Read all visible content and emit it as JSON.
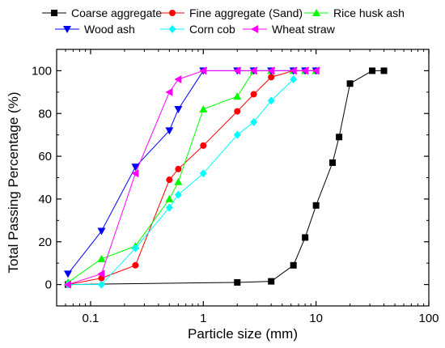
{
  "chart_data": {
    "type": "line",
    "xlabel": "Particle size (mm)",
    "ylabel": "Total Passing Percentage (%)",
    "x_scale": "log",
    "xlim": [
      0.05,
      100
    ],
    "ylim": [
      -10,
      110
    ],
    "x_ticks": [
      {
        "value": 0.1,
        "label": "0.1"
      },
      {
        "value": 1,
        "label": "1"
      },
      {
        "value": 10,
        "label": "10"
      },
      {
        "value": 100,
        "label": "100"
      }
    ],
    "y_ticks": [
      {
        "value": 0,
        "label": "0"
      },
      {
        "value": 20,
        "label": "20"
      },
      {
        "value": 40,
        "label": "40"
      },
      {
        "value": 60,
        "label": "60"
      },
      {
        "value": 80,
        "label": "80"
      },
      {
        "value": 100,
        "label": "100"
      }
    ],
    "grid": false,
    "legend_position": "top",
    "series": [
      {
        "name": "Coarse aggregate",
        "color": "#000000",
        "marker": "square",
        "x": [
          0.063,
          2,
          4,
          6.3,
          8,
          10,
          14,
          16,
          20,
          31.5,
          40
        ],
        "y": [
          0,
          1,
          1.5,
          9,
          22,
          37,
          57,
          69,
          94,
          100,
          100
        ]
      },
      {
        "name": "Fine aggregate (Sand)",
        "color": "#ff0000",
        "marker": "circle",
        "x": [
          0.063,
          0.125,
          0.25,
          0.5,
          0.6,
          1,
          2,
          2.8,
          4,
          6.3,
          8,
          10
        ],
        "y": [
          0,
          3,
          9,
          49,
          54,
          65,
          81,
          89,
          97,
          100,
          100,
          100
        ]
      },
      {
        "name": "Rice husk ash",
        "color": "#00ff00",
        "marker": "triangle-up",
        "x": [
          0.063,
          0.125,
          0.25,
          0.5,
          0.6,
          1,
          2,
          2.8,
          4,
          6.3,
          8,
          10
        ],
        "y": [
          1,
          12,
          18,
          40,
          48,
          82,
          88,
          100,
          100,
          100,
          100,
          100
        ]
      },
      {
        "name": "Wood ash",
        "color": "#0000ff",
        "marker": "triangle-down",
        "x": [
          0.063,
          0.125,
          0.25,
          0.5,
          0.6,
          1,
          2,
          2.8,
          4,
          6.3,
          8,
          10
        ],
        "y": [
          5,
          25,
          55,
          72,
          82,
          100,
          100,
          100,
          100,
          100,
          100,
          100
        ]
      },
      {
        "name": "Corn cob",
        "color": "#00ffff",
        "marker": "diamond",
        "x": [
          0.063,
          0.125,
          0.25,
          0.5,
          0.6,
          1,
          2,
          2.8,
          4,
          6.3
        ],
        "y": [
          0,
          0,
          17,
          36,
          42,
          52,
          70,
          76,
          86,
          96
        ]
      },
      {
        "name": "Wheat straw",
        "color": "#ff00ff",
        "marker": "triangle-left",
        "x": [
          0.063,
          0.125,
          0.25,
          0.5,
          0.6,
          1,
          2,
          2.8,
          4,
          6.3,
          8,
          10
        ],
        "y": [
          0,
          5,
          52,
          90,
          96,
          100,
          100,
          100,
          100,
          100,
          100,
          100
        ]
      }
    ]
  }
}
